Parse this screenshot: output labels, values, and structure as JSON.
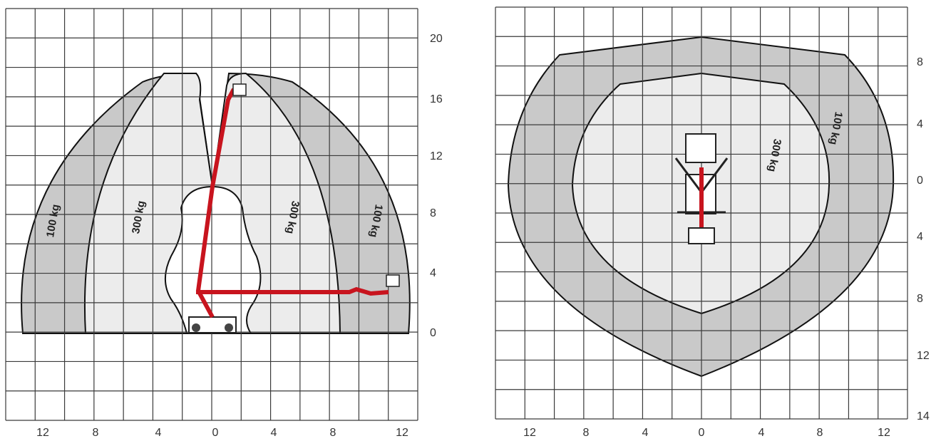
{
  "side_view": {
    "x_labels": [
      12,
      8,
      4,
      0,
      4,
      8,
      12
    ],
    "y_labels": [
      20,
      16,
      12,
      8,
      4,
      0
    ],
    "zone_labels": [
      "100 kg",
      "300 kg",
      "300 kg",
      "100 kg"
    ]
  },
  "top_view": {
    "x_labels": [
      12,
      8,
      4,
      0,
      4,
      8,
      12
    ],
    "y_labels": [
      8,
      4,
      0,
      4,
      8,
      12,
      14
    ],
    "zone_labels": [
      "300 kg",
      "100 kg"
    ]
  }
}
